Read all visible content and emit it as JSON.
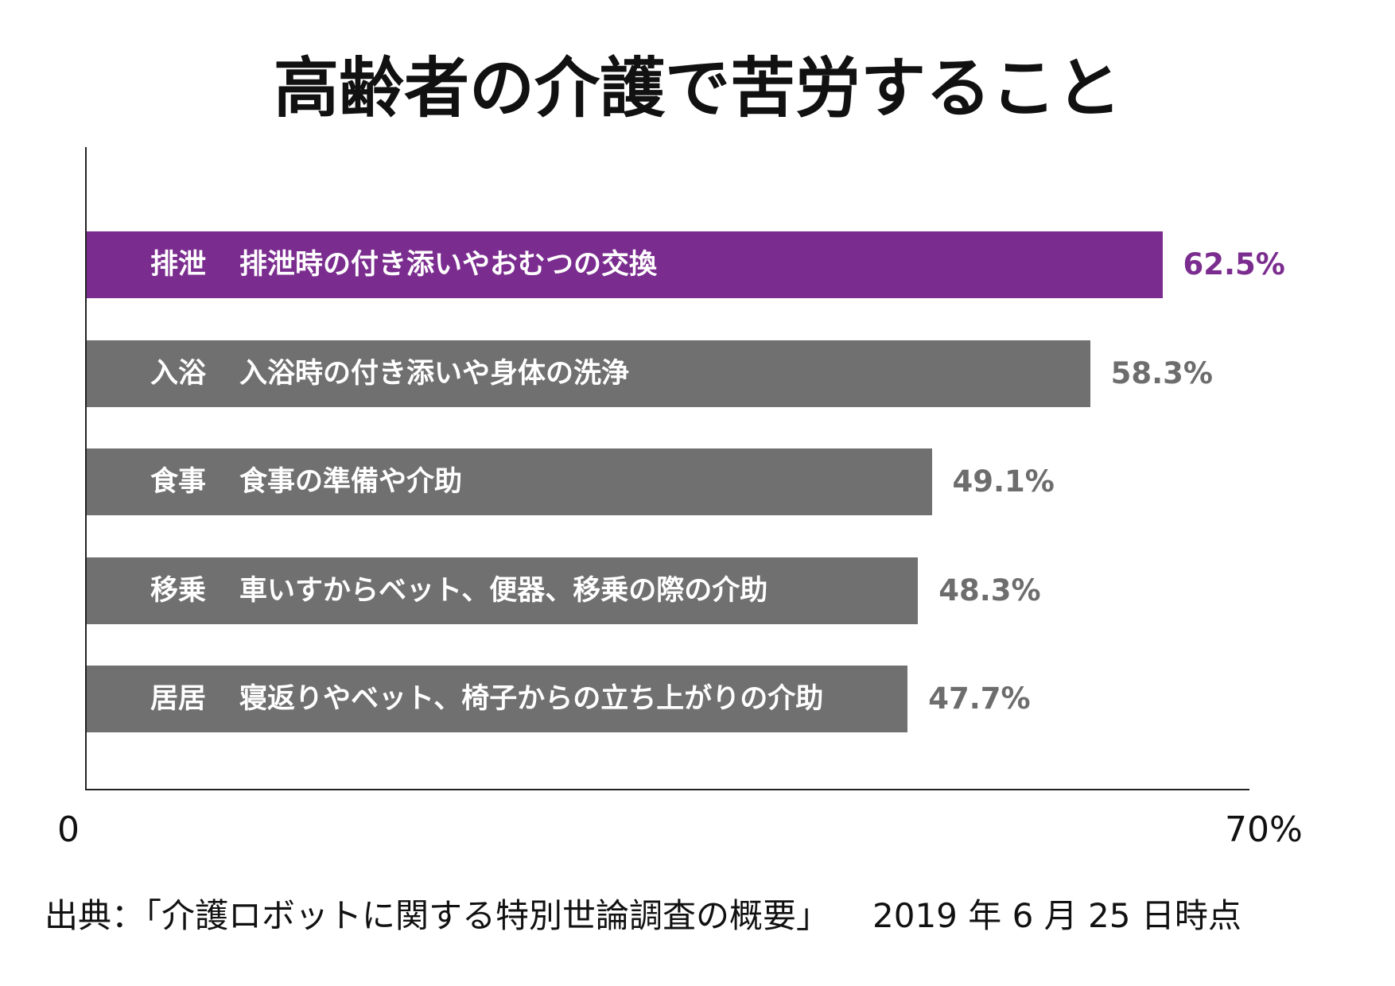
{
  "chart_data": {
    "type": "bar",
    "orientation": "horizontal",
    "title": "高齢者の介護で苦労すること",
    "categories": [
      "排泄",
      "入浴",
      "食事",
      "移乗",
      "居居"
    ],
    "descriptions": [
      "排泄時の付き添いやおむつの交換",
      "入浴時の付き添いや身体の洗浄",
      "食事の準備や介助",
      "車いすからベット、便器、移乗の際の介助",
      "寝返りやベット、椅子からの立ち上がりの介助"
    ],
    "values": [
      62.5,
      58.3,
      49.1,
      48.3,
      47.7
    ],
    "value_labels": [
      "62.5%",
      "58.3%",
      "49.1%",
      "48.3%",
      "47.7%"
    ],
    "xlim": [
      0,
      70
    ],
    "x_tick_labels": [
      "0",
      "70%"
    ],
    "xlabel": "",
    "ylabel": "",
    "grid": false,
    "highlight_index": 0,
    "colors": {
      "highlight": "#7B2D8F",
      "default": "#707070",
      "highlight_label": "#7B2D8F",
      "label": "#6D6D6D"
    },
    "source": "出典：「介護ロボットに関する特別世論調査の概要」",
    "date": "2019 年 6 月 25 日時点"
  }
}
